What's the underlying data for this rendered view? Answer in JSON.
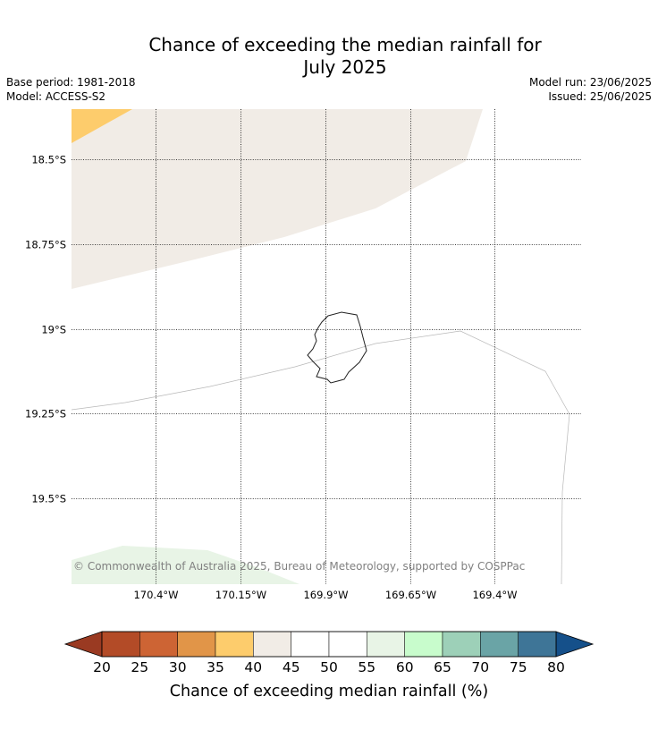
{
  "title_line1": "Chance of exceeding the median rainfall for",
  "title_line2": "July 2025",
  "base_period": "Base period: 1981-2018",
  "model": "Model: ACCESS-S2",
  "model_run": "Model run: 23/06/2025",
  "issued": "Issued: 25/06/2025",
  "copyright": "© Commonwealth of Australia 2025, Bureau of Meteorology, supported by COSPPac",
  "lat_labels": [
    "18.5°S",
    "18.75°S",
    "19°S",
    "19.25°S",
    "19.5°S"
  ],
  "lon_labels": [
    "170.4°W",
    "170.15°W",
    "169.9°W",
    "169.65°W",
    "169.4°W"
  ],
  "colorbar": {
    "title": "Chance of exceeding median rainfall (%)",
    "ticks": [
      "20",
      "25",
      "30",
      "35",
      "40",
      "45",
      "50",
      "55",
      "60",
      "65",
      "70",
      "75",
      "80"
    ],
    "under_color": "#9a3a22",
    "over_color": "#15508a",
    "bin_colors": [
      "#b34b27",
      "#cd6434",
      "#e19548",
      "#fdcc6c",
      "#f1ece6",
      "#ffffff",
      "#ffffff",
      "#e8f4e6",
      "#c8fccc",
      "#9dd0b8",
      "#6aa4a6",
      "#3e7597"
    ]
  },
  "regions": {
    "beige": "#f1ece6",
    "orange": "#fdcc6c",
    "green": "#e8f4e6"
  }
}
